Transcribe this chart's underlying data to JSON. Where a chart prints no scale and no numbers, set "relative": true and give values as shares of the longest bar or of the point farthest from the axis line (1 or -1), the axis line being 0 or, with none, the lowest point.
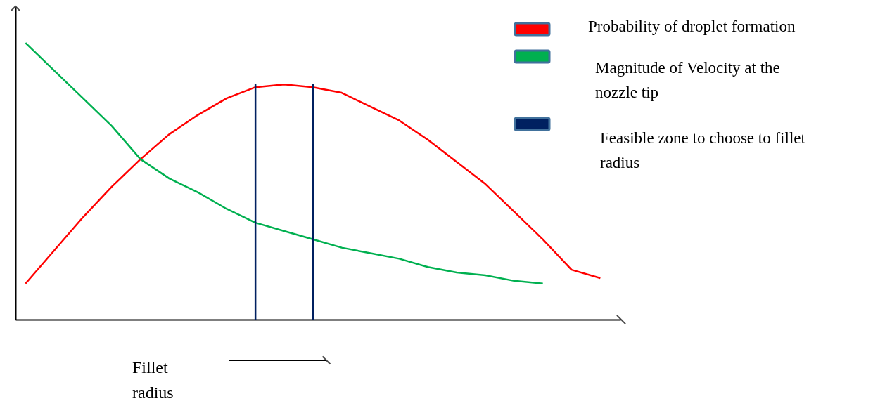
{
  "chart_data": {
    "type": "line",
    "relative": true,
    "xlabel": "Fillet radius",
    "legend": "top right",
    "grid": false,
    "tick_labels": false,
    "categories": [
      null,
      null,
      null,
      null,
      null,
      null,
      null,
      null,
      null,
      null,
      null,
      null,
      null,
      null,
      null,
      null,
      null,
      null,
      null,
      null,
      null
    ],
    "series": [
      {
        "name": "Probability of droplet formation",
        "color": "#ff0000",
        "values": [
          0.13,
          0.25,
          0.37,
          0.48,
          0.58,
          0.67,
          0.74,
          0.8,
          0.84,
          0.85,
          0.84,
          0.82,
          0.77,
          0.72,
          0.65,
          0.57,
          0.49,
          0.39,
          0.29,
          0.18,
          0.15
        ]
      },
      {
        "name": "Magnitude of Velocity at the nozzle tip",
        "color": "#00b050",
        "values": [
          1,
          0.9,
          0.8,
          0.7,
          0.58,
          0.51,
          0.46,
          0.4,
          0.35,
          0.32,
          0.29,
          0.26,
          0.24,
          0.22,
          0.19,
          0.17,
          0.16,
          0.14,
          0.13,
          null,
          null
        ]
      }
    ],
    "annotations": [
      "Feasible zone to choose to fillet radius"
    ]
  }
}
